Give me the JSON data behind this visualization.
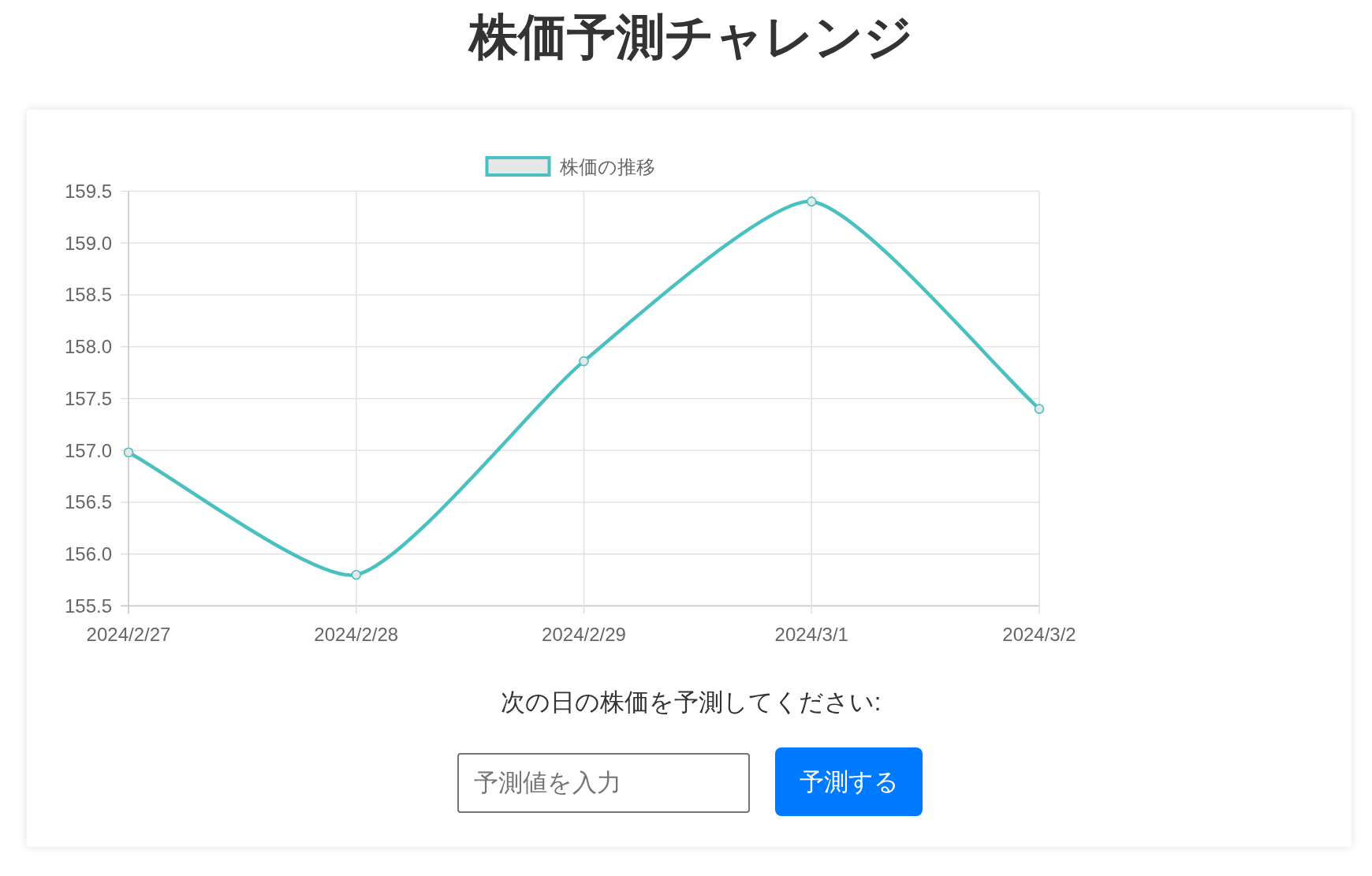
{
  "chart_data": {
    "type": "line",
    "title": "株価予測チャレンジ",
    "categories": [
      "2024/2/27",
      "2024/2/28",
      "2024/2/29",
      "2024/3/1",
      "2024/3/2"
    ],
    "series": [
      {
        "name": "株価の推移",
        "color": "#4bc0c0",
        "values": [
          156.98,
          155.8,
          157.86,
          159.4,
          157.4
        ]
      }
    ],
    "ylim": [
      155.5,
      159.5
    ],
    "yticks": [
      155.5,
      {
        "value": 156,
        "label": "156.0"
      },
      156.5,
      {
        "value": 157,
        "label": "157.0"
      },
      157.5,
      {
        "value": 158,
        "label": "158.0"
      },
      158.5,
      {
        "value": 159,
        "label": "159.0"
      },
      159.5
    ],
    "grid": true,
    "legend": "top",
    "marker": "circle",
    "line_style": "solid",
    "annotations": [
      "次の日の株価を予測してください:",
      "予測値を入力",
      "予測する"
    ]
  }
}
